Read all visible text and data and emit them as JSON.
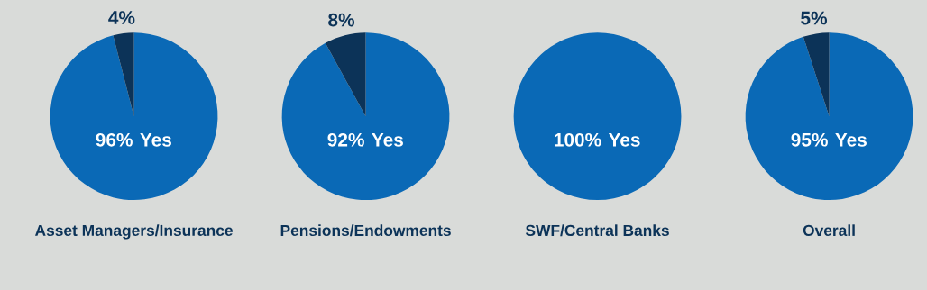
{
  "chart_data": [
    {
      "type": "pie",
      "title": "Asset Managers/Insurance",
      "categories": [
        "Yes",
        null
      ],
      "values": [
        96,
        4
      ],
      "colors": [
        "#0a69b6",
        "#0c3358"
      ],
      "value_labels": [
        "96%",
        "4%"
      ]
    },
    {
      "type": "pie",
      "title": "Pensions/Endowments",
      "categories": [
        "Yes",
        null
      ],
      "values": [
        92,
        8
      ],
      "colors": [
        "#0a69b6",
        "#0c3358"
      ],
      "value_labels": [
        "92%",
        "8%"
      ]
    },
    {
      "type": "pie",
      "title": "SWF/Central Banks",
      "categories": [
        "Yes"
      ],
      "values": [
        100
      ],
      "colors": [
        "#0a69b6"
      ],
      "value_labels": [
        "100%"
      ]
    },
    {
      "type": "pie",
      "title": "Overall",
      "categories": [
        "Yes",
        null
      ],
      "values": [
        95,
        5
      ],
      "colors": [
        "#0a69b6",
        "#0c3358"
      ],
      "value_labels": [
        "95%",
        "5%"
      ]
    }
  ]
}
